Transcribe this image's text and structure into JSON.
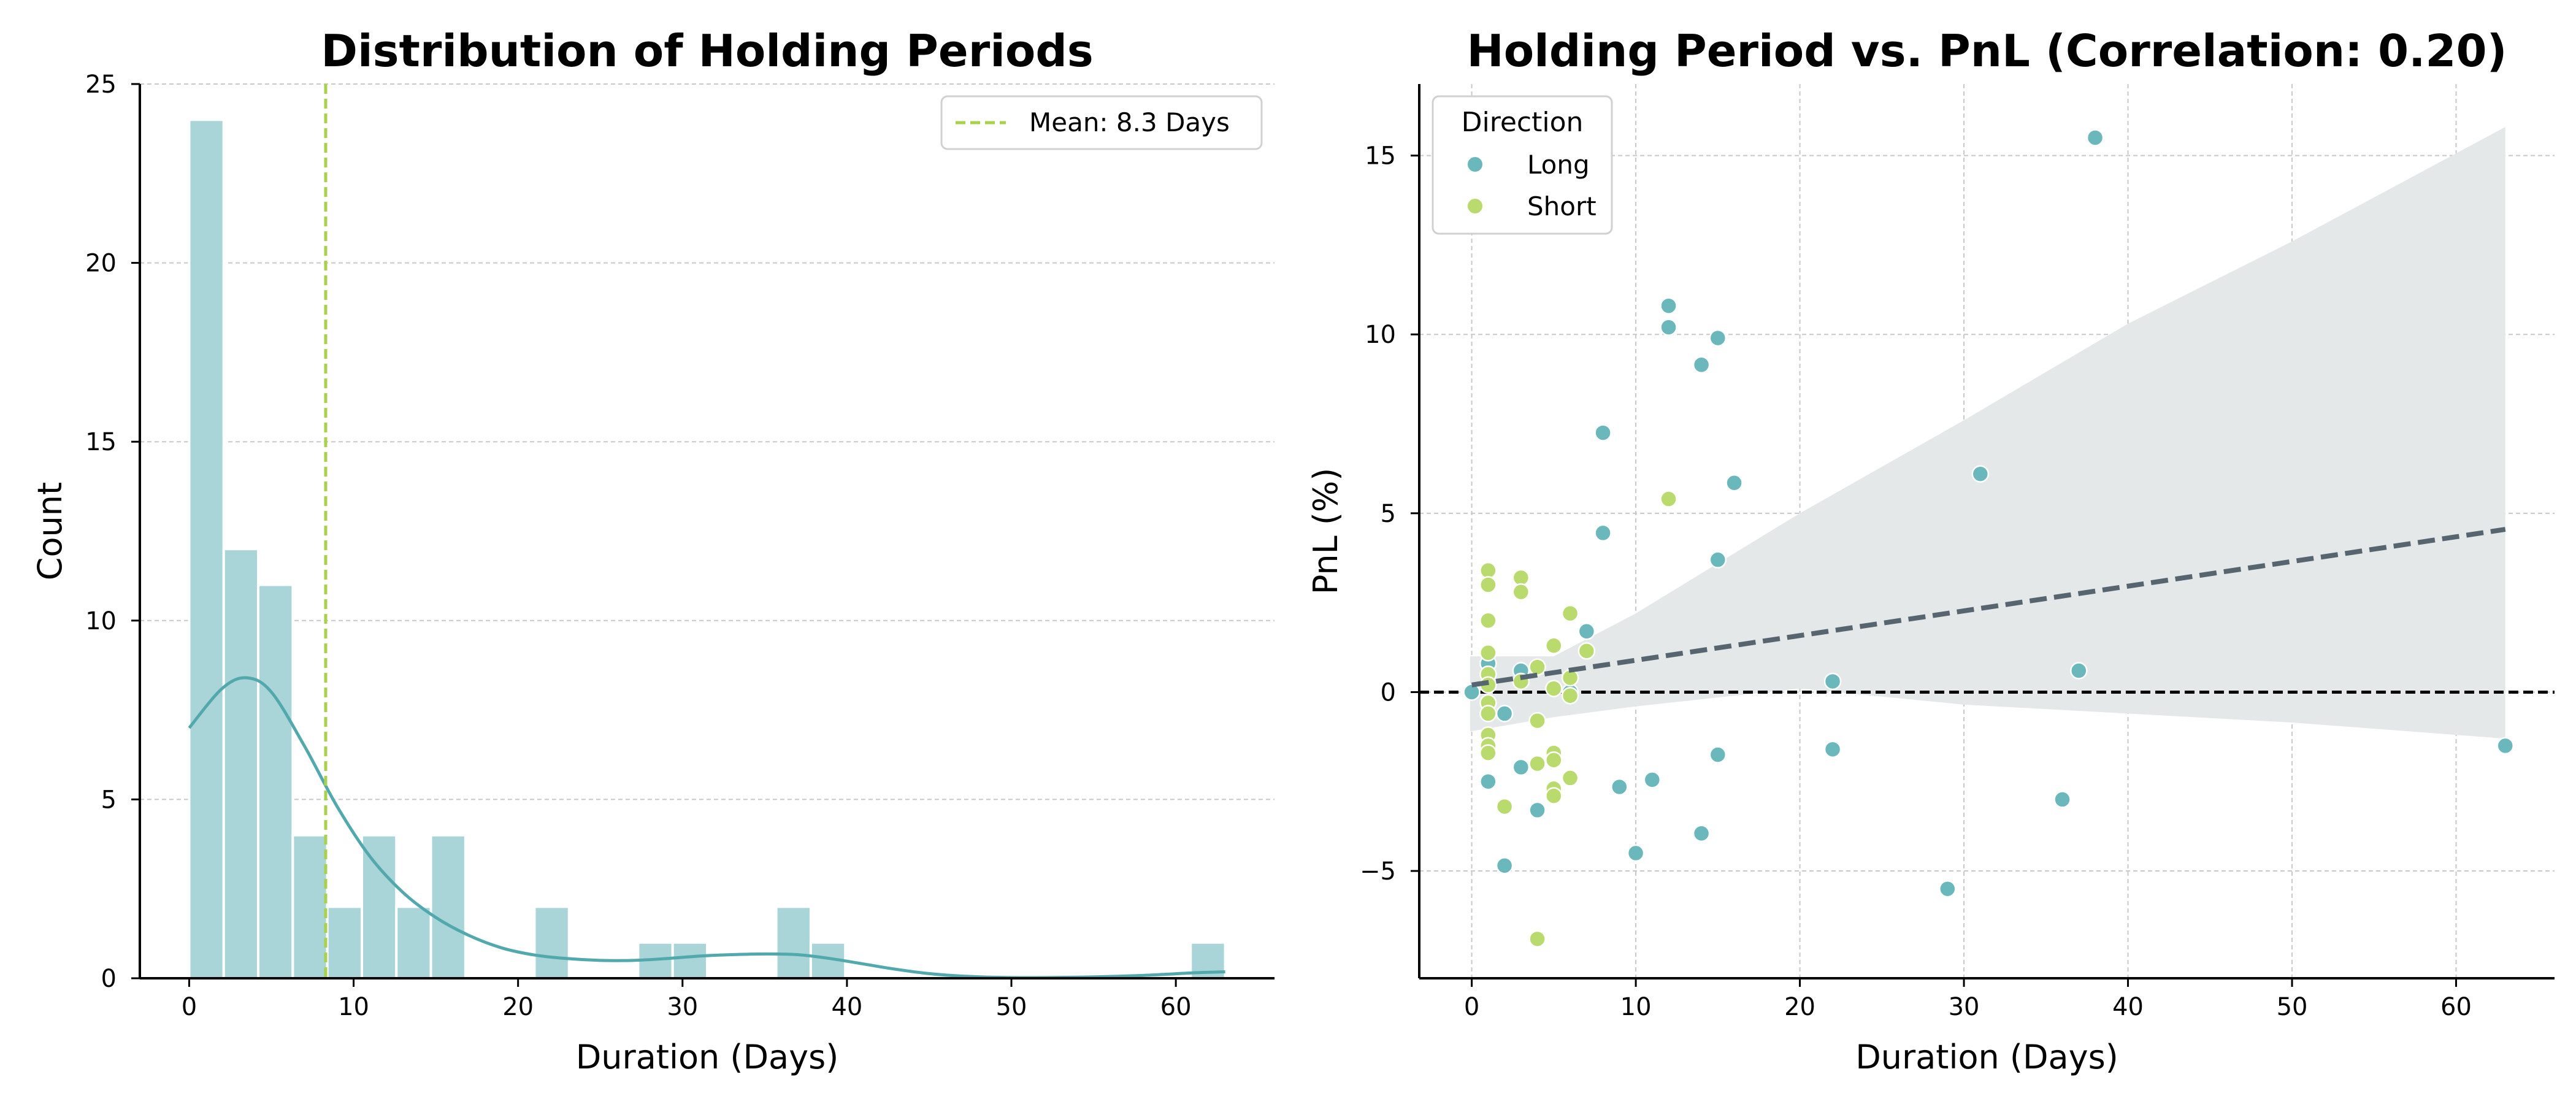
{
  "chart_data": [
    {
      "type": "bar",
      "subtype": "histogram_with_kde",
      "title": "Distribution of Holding Periods",
      "xlabel": "Duration (Days)",
      "ylabel": "Count",
      "xlim": [
        -3,
        66
      ],
      "ylim": [
        0,
        25
      ],
      "xticks": [
        0,
        10,
        20,
        30,
        40,
        50,
        60
      ],
      "yticks": [
        0,
        5,
        10,
        15,
        20,
        25
      ],
      "grid": "horizontal dashed",
      "legend_position": "upper right",
      "bin_edges": [
        0,
        2.1,
        4.2,
        6.3,
        8.4,
        10.5,
        12.6,
        14.7,
        16.8,
        18.9,
        21.0,
        23.1,
        25.2,
        27.3,
        29.4,
        31.5,
        33.6,
        35.7,
        37.8,
        39.9,
        42.0,
        44.1,
        46.2,
        48.3,
        50.4,
        52.5,
        54.6,
        56.7,
        58.8,
        60.9,
        63.0
      ],
      "counts": [
        24,
        12,
        11,
        4,
        2,
        4,
        2,
        4,
        0,
        0,
        2,
        0,
        0,
        1,
        1,
        0,
        0,
        2,
        1,
        0,
        0,
        0,
        0,
        0,
        0,
        0,
        0,
        0,
        0,
        1
      ],
      "kde": {
        "x": [
          0,
          2,
          3.5,
          5,
          7,
          9,
          11,
          13,
          15,
          17,
          19,
          21,
          23,
          25,
          27,
          29,
          31,
          33,
          35,
          37,
          39,
          41,
          43,
          45,
          47,
          50,
          54,
          58,
          61,
          63
        ],
        "y": [
          7.0,
          8.1,
          8.4,
          8.0,
          6.5,
          4.8,
          3.4,
          2.4,
          1.7,
          1.2,
          0.85,
          0.65,
          0.55,
          0.5,
          0.5,
          0.55,
          0.62,
          0.66,
          0.68,
          0.66,
          0.55,
          0.4,
          0.25,
          0.13,
          0.06,
          0.02,
          0.03,
          0.08,
          0.15,
          0.18
        ]
      },
      "mean_line": {
        "value": 8.3,
        "label": "Mean: 8.3 Days"
      },
      "colors": {
        "bars": "#a9d5d8",
        "bar_edge": "#ffffff",
        "kde": "#52a9ad",
        "mean": "#a8d24c"
      }
    },
    {
      "type": "scatter",
      "subtype": "scatter_with_regression",
      "title": "Holding Period vs. PnL (Correlation: 0.20)",
      "xlabel": "Duration (Days)",
      "ylabel": "PnL (%)",
      "xlim": [
        -3.2,
        66
      ],
      "ylim": [
        -8,
        17
      ],
      "xticks": [
        0,
        10,
        20,
        30,
        40,
        50,
        60
      ],
      "yticks": [
        -5,
        0,
        5,
        10,
        15
      ],
      "ytick_labels": [
        "−5",
        "0",
        "5",
        "10",
        "15"
      ],
      "grid": "both dashed",
      "legend_title": "Direction",
      "legend_position": "upper left",
      "series": [
        {
          "name": "Long",
          "color": "#6bb8bc",
          "points": [
            [
              38,
              15.5
            ],
            [
              12,
              10.8
            ],
            [
              12,
              10.2
            ],
            [
              15,
              9.9
            ],
            [
              14,
              9.15
            ],
            [
              8,
              7.25
            ],
            [
              31,
              6.1
            ],
            [
              16,
              5.85
            ],
            [
              8,
              4.45
            ],
            [
              15,
              3.7
            ],
            [
              7,
              1.7
            ],
            [
              37,
              0.6
            ],
            [
              3,
              0.6
            ],
            [
              22,
              0.3
            ],
            [
              1,
              0.8
            ],
            [
              0,
              0.0
            ],
            [
              6,
              0.0
            ],
            [
              2,
              -0.6
            ],
            [
              22,
              -1.6
            ],
            [
              15,
              -1.75
            ],
            [
              63,
              -1.5
            ],
            [
              3,
              -2.1
            ],
            [
              11,
              -2.45
            ],
            [
              9,
              -2.65
            ],
            [
              1,
              -2.5
            ],
            [
              36,
              -3.0
            ],
            [
              4,
              -3.3
            ],
            [
              14,
              -3.95
            ],
            [
              10,
              -4.5
            ],
            [
              2,
              -4.85
            ],
            [
              29,
              -5.5
            ]
          ]
        },
        {
          "name": "Short",
          "color": "#b9db6e",
          "points": [
            [
              1,
              3.4
            ],
            [
              1,
              3.0
            ],
            [
              3,
              3.2
            ],
            [
              3,
              2.8
            ],
            [
              1,
              2.0
            ],
            [
              6,
              2.2
            ],
            [
              12,
              5.4
            ],
            [
              5,
              1.3
            ],
            [
              7,
              1.15
            ],
            [
              1,
              1.1
            ],
            [
              1,
              0.5
            ],
            [
              4,
              0.7
            ],
            [
              6,
              0.4
            ],
            [
              1,
              0.2
            ],
            [
              3,
              0.3
            ],
            [
              5,
              0.1
            ],
            [
              6,
              -0.1
            ],
            [
              1,
              -0.3
            ],
            [
              1,
              -0.6
            ],
            [
              4,
              -0.8
            ],
            [
              1,
              -1.2
            ],
            [
              1,
              -1.5
            ],
            [
              1,
              -1.7
            ],
            [
              5,
              -1.7
            ],
            [
              5,
              -1.9
            ],
            [
              4,
              -2.0
            ],
            [
              6,
              -2.4
            ],
            [
              5,
              -2.7
            ],
            [
              5,
              -2.9
            ],
            [
              2,
              -3.2
            ],
            [
              4,
              -6.9
            ]
          ]
        }
      ],
      "regression": {
        "x": [
          0,
          63
        ],
        "y": [
          0.2,
          4.55
        ],
        "color": "#566570"
      },
      "confidence_band": {
        "x": [
          -0.1,
          5,
          10,
          20,
          30,
          40,
          50,
          63
        ],
        "upper": [
          1.0,
          1.0,
          2.2,
          5.0,
          7.6,
          10.3,
          12.6,
          15.8
        ],
        "lower": [
          -1.1,
          -0.7,
          -0.4,
          0.1,
          -0.35,
          -0.6,
          -0.85,
          -1.3
        ],
        "color": "#e4e8e9"
      },
      "reference_line": {
        "y": 0,
        "style": "dashed",
        "color": "#000000"
      }
    }
  ]
}
